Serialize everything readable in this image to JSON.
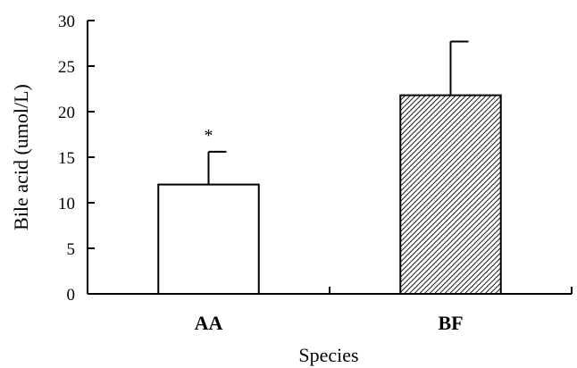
{
  "chart_data": {
    "type": "bar",
    "title": "",
    "xlabel": "Species",
    "ylabel": "Bile acid (umol/L)",
    "categories": [
      "AA",
      "BF"
    ],
    "values": [
      12,
      21.8
    ],
    "error_bars": [
      3.6,
      5.9
    ],
    "annotations": [
      "*",
      ""
    ],
    "ylim": [
      0,
      30
    ],
    "yticks": [
      "0",
      "5",
      "10",
      "15",
      "20",
      "25",
      "30"
    ],
    "fills": [
      "white",
      "hatched"
    ],
    "colors": {
      "axis": "#000000",
      "bar_edge": "#000000",
      "bar_fill": "#ffffff",
      "hatch": "#000000"
    },
    "grid": false,
    "legend": "none"
  }
}
